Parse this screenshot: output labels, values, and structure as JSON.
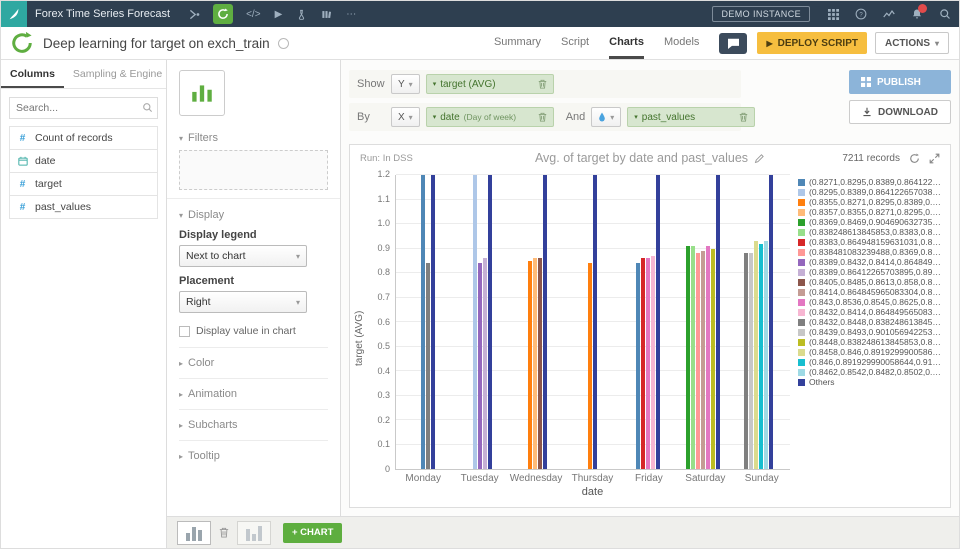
{
  "icons": {
    "caret_down": "▾",
    "caret_right": "▸",
    "play": "▶",
    "more": "⋯",
    "code": "</>",
    "hash": "#",
    "plus_chart": "+ CHART"
  },
  "topbar": {
    "project_name": "Forex Time Series Forecast",
    "demo_instance": "DEMO INSTANCE"
  },
  "header": {
    "title": "Deep learning for target on exch_train",
    "tabs": [
      {
        "label": "Summary",
        "active": false
      },
      {
        "label": "Script",
        "active": false
      },
      {
        "label": "Charts",
        "active": true
      },
      {
        "label": "Models",
        "active": false
      }
    ],
    "deploy_label": "DEPLOY SCRIPT",
    "actions_label": "ACTIONS"
  },
  "left_panel": {
    "tabs": [
      "Columns",
      "Sampling & Engine"
    ],
    "search_placeholder": "Search...",
    "columns": [
      {
        "icon": "hash",
        "label": "Count of records"
      },
      {
        "icon": "calendar",
        "label": "date"
      },
      {
        "icon": "hash",
        "label": "target"
      },
      {
        "icon": "hash",
        "label": "past_values"
      }
    ]
  },
  "config_panel": {
    "filters_label": "Filters",
    "display_label": "Display",
    "display_legend_label": "Display legend",
    "display_legend_value": "Next to chart",
    "placement_label": "Placement",
    "placement_value": "Right",
    "display_value_checkbox": "Display value in chart",
    "collapsed_sections": [
      "Color",
      "Animation",
      "Subcharts",
      "Tooltip"
    ]
  },
  "controls": {
    "show_label": "Show",
    "y_label": "Y",
    "y_pill": "target (AVG)",
    "by_label": "By",
    "x_label": "X",
    "x_pill_main": "date",
    "x_pill_sub": "(Day of week)",
    "and_label": "And",
    "and_pill": "past_values",
    "publish_label": "PUBLISH",
    "download_label": "DOWNLOAD"
  },
  "chart_header": {
    "run_label": "Run: In DSS",
    "title": "Avg. of target by date and past_values",
    "records": "7211 records"
  },
  "footer": {
    "add_chart_label": "+ CHART"
  },
  "chart_data": {
    "type": "bar",
    "title": "Avg. of target by date and past_values",
    "categories": [
      "Monday",
      "Tuesday",
      "Wednesday",
      "Thursday",
      "Friday",
      "Saturday",
      "Sunday"
    ],
    "xlabel": "date",
    "ylabel": "target (AVG)",
    "ylim": [
      0,
      1.2
    ],
    "ytick_step": 0.1,
    "grid": true,
    "legend_position": "right",
    "series": [
      {
        "name": "(0.8271,0.8295,0.8389,0.86412265703...",
        "color": "#4f87b6",
        "values": [
          1.22,
          null,
          null,
          null,
          0.84,
          null,
          null
        ]
      },
      {
        "name": "(0.8295,0.8389,0.86412265703895,0....",
        "color": "#aec7e8",
        "values": [
          null,
          1.22,
          null,
          null,
          null,
          null,
          null
        ]
      },
      {
        "name": "(0.8355,0.8271,0.8295,0.8389,0.86412...",
        "color": "#ff7f0e",
        "values": [
          null,
          null,
          0.85,
          0.84,
          null,
          null,
          null
        ]
      },
      {
        "name": "(0.8357,0.8355,0.8271,0.8295,0.8389,0...",
        "color": "#ffbb78",
        "values": [
          null,
          null,
          0.86,
          null,
          null,
          null,
          null
        ]
      },
      {
        "name": "(0.8369,0.8469,0.904690632735939,0...",
        "color": "#2ca02c",
        "values": [
          null,
          null,
          null,
          null,
          null,
          0.91,
          null
        ]
      },
      {
        "name": "(0.838248613845853,0.8383,0.864948...",
        "color": "#98df8a",
        "values": [
          null,
          null,
          null,
          null,
          null,
          0.91,
          null
        ]
      },
      {
        "name": "(0.8383,0.864948159631031,0.886488...",
        "color": "#d62728",
        "values": [
          null,
          null,
          null,
          null,
          0.86,
          null,
          null
        ]
      },
      {
        "name": "(0.838481083239488,0.8369,0.8469,0...",
        "color": "#ff9896",
        "values": [
          null,
          null,
          null,
          null,
          null,
          0.88,
          null
        ]
      },
      {
        "name": "(0.8389,0.8432,0.8414,0.86484956508...",
        "color": "#9467bd",
        "values": [
          null,
          0.84,
          null,
          null,
          null,
          null,
          null
        ]
      },
      {
        "name": "(0.8389,0.86412265703895,0.892154...",
        "color": "#c5b0d5",
        "values": [
          null,
          0.86,
          null,
          null,
          null,
          null,
          null
        ]
      },
      {
        "name": "(0.8405,0.8485,0.8613,0.858,0.8668,0...",
        "color": "#8c564b",
        "values": [
          null,
          null,
          0.86,
          null,
          null,
          null,
          null
        ]
      },
      {
        "name": "(0.8414,0.864845965083304,0.890530...",
        "color": "#c49c94",
        "values": [
          null,
          null,
          null,
          null,
          null,
          0.89,
          null
        ]
      },
      {
        "name": "(0.843,0.8536,0.8545,0.8625,0.861,0.9...",
        "color": "#e377c2",
        "values": [
          null,
          null,
          null,
          null,
          0.86,
          0.91,
          null
        ]
      },
      {
        "name": "(0.8432,0.8414,0.86484956508304,0...",
        "color": "#f7b6d2",
        "values": [
          null,
          null,
          null,
          null,
          0.87,
          null,
          null
        ]
      },
      {
        "name": "(0.8432,0.8448,0.838248613845853,0...",
        "color": "#7f7f7f",
        "values": [
          0.84,
          null,
          null,
          null,
          null,
          null,
          0.88
        ]
      },
      {
        "name": "(0.8439,0.8493,0.90105694225323,0...",
        "color": "#c7c7c7",
        "values": [
          null,
          null,
          null,
          null,
          null,
          null,
          0.88
        ]
      },
      {
        "name": "(0.8448,0.838248613845853,0.8432,0...",
        "color": "#bcbd22",
        "values": [
          null,
          null,
          null,
          null,
          null,
          0.9,
          null
        ]
      },
      {
        "name": "(0.8458,0.846,0.891929990058644,0.9...",
        "color": "#dbdb8d",
        "values": [
          null,
          null,
          null,
          null,
          null,
          null,
          0.93
        ]
      },
      {
        "name": "(0.846,0.891929990058644,0.9191096...",
        "color": "#17becf",
        "values": [
          null,
          null,
          null,
          null,
          null,
          null,
          0.92
        ]
      },
      {
        "name": "(0.8462,0.8542,0.8482,0.8502,0.8504,0...",
        "color": "#9edae5",
        "values": [
          null,
          null,
          null,
          null,
          null,
          null,
          0.93
        ]
      },
      {
        "name": "Others",
        "color": "#33409b",
        "values": [
          1.22,
          1.22,
          1.22,
          1.22,
          1.22,
          1.22,
          1.22
        ]
      }
    ]
  }
}
